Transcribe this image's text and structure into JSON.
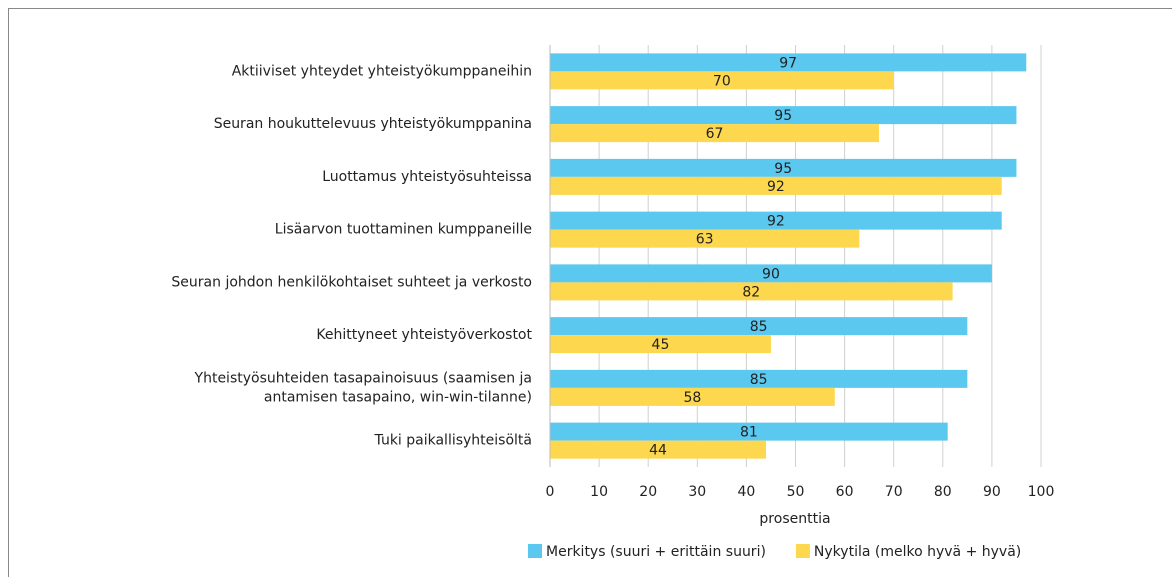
{
  "chart_data": {
    "type": "bar",
    "orientation": "horizontal",
    "categories": [
      "Aktiiviset yhteydet yhteistyökumppaneihin",
      "Seuran houkuttelevuus yhteistyökumppanina",
      "Luottamus yhteistyösuhteissa",
      "Lisäarvon tuottaminen kumppaneille",
      "Seuran johdon henkilökohtaiset suhteet ja verkosto",
      "Kehittyneet yhteistyöverkostot",
      "Yhteistyösuhteiden tasapainoisuus (saamisen ja antamisen tasapaino, win-win-tilanne)",
      "Tuki paikallisyhteisöltä"
    ],
    "series": [
      {
        "name": "Merkitys (suuri + erittäin suuri)",
        "color": "#5bc8f0",
        "values": [
          97,
          95,
          95,
          92,
          90,
          85,
          85,
          81
        ]
      },
      {
        "name": "Nykytila (melko hyvä + hyvä)",
        "color": "#fdd84e",
        "values": [
          70,
          67,
          92,
          63,
          82,
          45,
          58,
          44
        ]
      }
    ],
    "x_label": "prosenttia",
    "xlim": [
      0,
      100
    ],
    "xticks": [
      0,
      10,
      20,
      30,
      40,
      50,
      60,
      70,
      80,
      90,
      100
    ],
    "grid": true,
    "legend": "bottom"
  }
}
